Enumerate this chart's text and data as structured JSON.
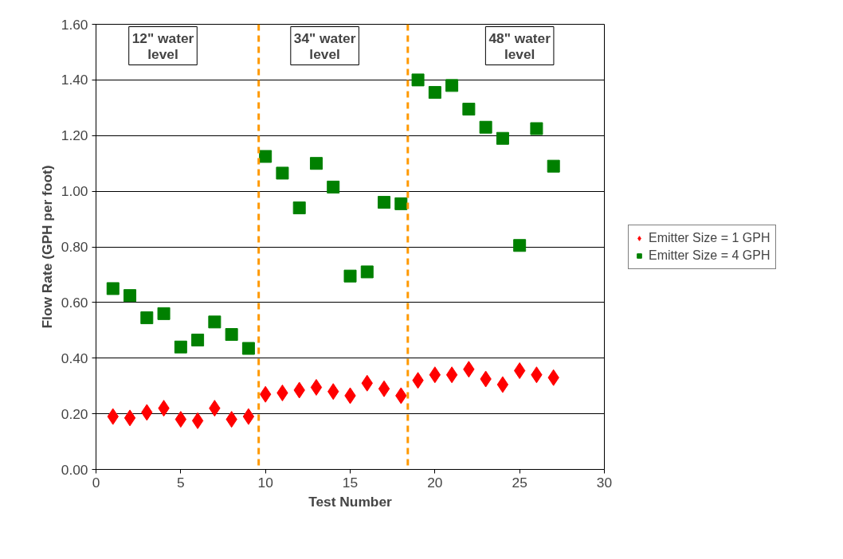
{
  "chart_data": {
    "type": "scatter",
    "xlabel": "Test Number",
    "ylabel": "Flow Rate (GPH per foot)",
    "x": [
      1,
      2,
      3,
      4,
      5,
      6,
      7,
      8,
      9,
      10,
      11,
      12,
      13,
      14,
      15,
      16,
      17,
      18,
      19,
      20,
      21,
      22,
      23,
      24,
      25,
      26,
      27
    ],
    "series": [
      {
        "name": "Emitter Size = 1 GPH",
        "color": "#ff0000",
        "marker": "diamond",
        "values": [
          0.19,
          0.185,
          0.205,
          0.22,
          0.18,
          0.175,
          0.22,
          0.18,
          0.19,
          0.27,
          0.275,
          0.285,
          0.295,
          0.28,
          0.265,
          0.31,
          0.29,
          0.265,
          0.32,
          0.34,
          0.34,
          0.36,
          0.325,
          0.305,
          0.355,
          0.34,
          0.33
        ]
      },
      {
        "name": "Emitter Size = 4 GPH",
        "color": "#008000",
        "marker": "square",
        "values": [
          0.65,
          0.625,
          0.545,
          0.56,
          0.44,
          0.465,
          0.53,
          0.485,
          0.435,
          1.125,
          1.065,
          0.94,
          1.1,
          1.015,
          0.695,
          0.71,
          0.96,
          0.955,
          1.4,
          1.355,
          1.38,
          1.295,
          1.23,
          1.19,
          0.805,
          1.225,
          1.09
        ]
      }
    ],
    "xlim": [
      0,
      30
    ],
    "xticks": [
      0,
      5,
      10,
      15,
      20,
      25,
      30
    ],
    "ylim": [
      0,
      1.6
    ],
    "yticks": [
      {
        "value": 0,
        "label": "0.00"
      },
      {
        "value": 0.2,
        "label": "0.20"
      },
      {
        "value": 0.4,
        "label": "0.40"
      },
      {
        "value": 0.6,
        "label": "0.60"
      },
      {
        "value": 0.8,
        "label": "0.80"
      },
      {
        "value": 1.0,
        "label": "1.00"
      },
      {
        "value": 1.2,
        "label": "1.20"
      },
      {
        "value": 1.4,
        "label": "1.40"
      },
      {
        "value": 1.6,
        "label": "1.60"
      }
    ],
    "grid": "y",
    "legend": "right",
    "ref_lines": [
      {
        "axis": "x",
        "value": 9.6,
        "color": "#ff9900",
        "line_style": "dashed"
      },
      {
        "axis": "x",
        "value": 18.4,
        "color": "#ff9900",
        "line_style": "dashed"
      }
    ],
    "annotations": [
      "12\" water level",
      "34\" water level",
      "48\" water level"
    ]
  }
}
